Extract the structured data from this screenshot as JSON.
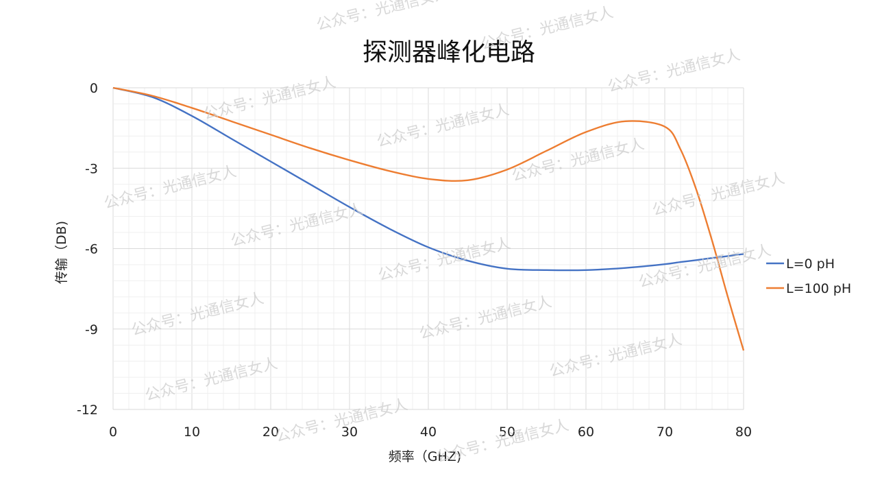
{
  "chart_data": {
    "type": "line",
    "title": "探测器峰化电路",
    "xlabel": "频率（GHZ)",
    "ylabel": "传输（DB)",
    "xlim": [
      0,
      80
    ],
    "ylim": [
      -12,
      0
    ],
    "x_ticks": [
      "0",
      "10",
      "20",
      "30",
      "40",
      "50",
      "60",
      "70",
      "80"
    ],
    "y_ticks": [
      "0",
      "-3",
      "-6",
      "-9",
      "-12"
    ],
    "grid": true,
    "legend_position": "right",
    "x": [
      0,
      5,
      10,
      15,
      20,
      25,
      30,
      35,
      40,
      45,
      50,
      55,
      60,
      65,
      70,
      72,
      74,
      76,
      78,
      80
    ],
    "series": [
      {
        "name": "L=0 pH",
        "color": "#4472c4",
        "values": [
          0,
          -0.35,
          -1.05,
          -1.9,
          -2.75,
          -3.6,
          -4.45,
          -5.25,
          -5.95,
          -6.45,
          -6.75,
          -6.8,
          -6.8,
          -6.72,
          -6.58,
          -6.5,
          -6.43,
          -6.35,
          -6.28,
          -6.2
        ]
      },
      {
        "name": "L=100 pH",
        "color": "#ed7d31",
        "values": [
          0,
          -0.3,
          -0.75,
          -1.25,
          -1.75,
          -2.25,
          -2.7,
          -3.1,
          -3.4,
          -3.45,
          -3.05,
          -2.35,
          -1.65,
          -1.25,
          -1.45,
          -2.3,
          -3.8,
          -5.7,
          -7.8,
          -9.8
        ]
      }
    ]
  },
  "watermark": "公众号：光通信女人"
}
